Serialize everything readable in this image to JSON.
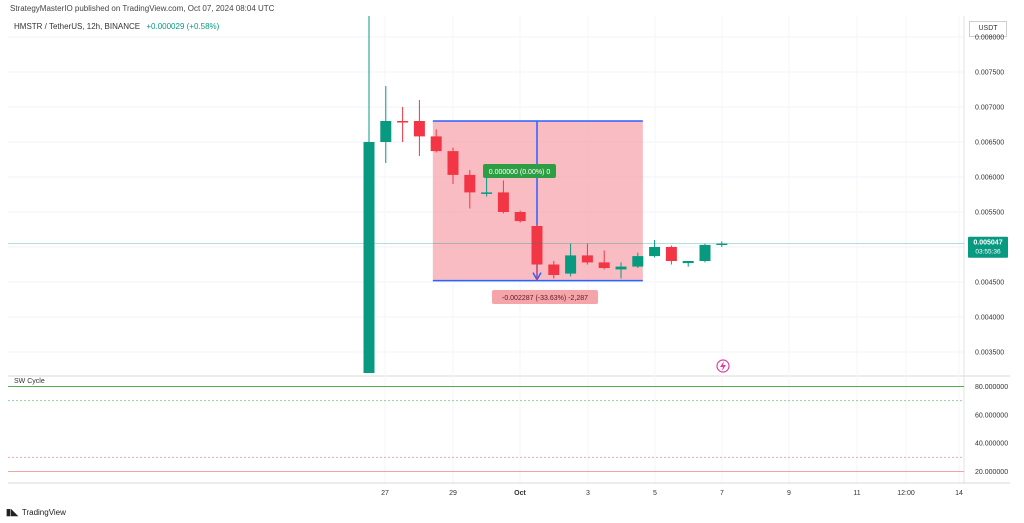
{
  "header": {
    "published": "StrategyMasterIO published on TradingView.com, Oct 07, 2024 08:04 UTC",
    "symbol": "HMSTR / TetherUS, 12h, BINANCE",
    "change": "+0.000029 (+0.58%)"
  },
  "currency_label": "USDT",
  "price_tag": {
    "price": "0.005047",
    "countdown": "03:55:36",
    "color": "#089981"
  },
  "indicator_label": "SW Cycle",
  "footer": {
    "brand": "TradingView",
    "logo_icon": "tradingview-logo-icon"
  },
  "measure": {
    "top_label": "0.000000 (0.00%) 0",
    "bottom_label": "-0.002287 (-33.63%) -2,287",
    "top_price": 0.0068,
    "bottom_price": 0.00452,
    "start_bar": 3.8,
    "end_bar": 16.3,
    "arrow_bar": 10.0
  },
  "chart_data": {
    "type": "candlestick",
    "interval": "12h",
    "colors": {
      "up": "#089981",
      "down": "#f23645",
      "measure_fill": "#f6a5ad",
      "measure_border": "#2962ff"
    },
    "ylim": [
      0.0032,
      0.0083
    ],
    "y_ticks": [
      "0.008000",
      "0.007500",
      "0.007000",
      "0.006500",
      "0.006000",
      "0.005500",
      "0.005000",
      "0.004500",
      "0.004000",
      "0.003500"
    ],
    "x_ticks": [
      "27",
      "29",
      "Oct",
      "3",
      "5",
      "7",
      "9",
      "11",
      "12:00",
      "14"
    ],
    "candles": [
      {
        "o": 0.0032,
        "h": 0.0083,
        "l": 0.0032,
        "c": 0.0065
      },
      {
        "o": 0.0065,
        "h": 0.0073,
        "l": 0.0062,
        "c": 0.0068
      },
      {
        "o": 0.0068,
        "h": 0.007,
        "l": 0.0065,
        "c": 0.00678
      },
      {
        "o": 0.0068,
        "h": 0.0071,
        "l": 0.0063,
        "c": 0.00658
      },
      {
        "o": 0.00658,
        "h": 0.00668,
        "l": 0.00635,
        "c": 0.00637
      },
      {
        "o": 0.00637,
        "h": 0.00642,
        "l": 0.0059,
        "c": 0.00603
      },
      {
        "o": 0.00603,
        "h": 0.0061,
        "l": 0.00555,
        "c": 0.00578
      },
      {
        "o": 0.00578,
        "h": 0.006,
        "l": 0.00572,
        "c": 0.00578
      },
      {
        "o": 0.00578,
        "h": 0.00595,
        "l": 0.00548,
        "c": 0.0055
      },
      {
        "o": 0.0055,
        "h": 0.00552,
        "l": 0.00535,
        "c": 0.00537
      },
      {
        "o": 0.0053,
        "h": 0.00532,
        "l": 0.00452,
        "c": 0.00475
      },
      {
        "o": 0.00475,
        "h": 0.0048,
        "l": 0.00455,
        "c": 0.0046
      },
      {
        "o": 0.00462,
        "h": 0.00505,
        "l": 0.00458,
        "c": 0.00488
      },
      {
        "o": 0.00488,
        "h": 0.00505,
        "l": 0.00475,
        "c": 0.00478
      },
      {
        "o": 0.00478,
        "h": 0.00495,
        "l": 0.00468,
        "c": 0.0047
      },
      {
        "o": 0.00468,
        "h": 0.00478,
        "l": 0.00455,
        "c": 0.00472
      },
      {
        "o": 0.00472,
        "h": 0.00492,
        "l": 0.0047,
        "c": 0.00487
      },
      {
        "o": 0.00487,
        "h": 0.0051,
        "l": 0.00485,
        "c": 0.005
      },
      {
        "o": 0.005,
        "h": 0.00502,
        "l": 0.00475,
        "c": 0.0048
      },
      {
        "o": 0.00477,
        "h": 0.0048,
        "l": 0.00472,
        "c": 0.0048
      },
      {
        "o": 0.0048,
        "h": 0.00505,
        "l": 0.00478,
        "c": 0.00503
      },
      {
        "o": 0.00503,
        "h": 0.00508,
        "l": 0.005,
        "c": 0.00505
      }
    ],
    "indicator": {
      "name": "SW Cycle",
      "ylim": [
        14,
        86
      ],
      "y_ticks": [
        "80.000000",
        "60.000000",
        "40.000000",
        "20.000000"
      ],
      "levels": [
        {
          "value": 80,
          "color": "#4caf50",
          "style": "solid"
        },
        {
          "value": 70,
          "color": "#8fd19e",
          "style": "dotted"
        },
        {
          "value": 30,
          "color": "#f0a5a5",
          "style": "dotted"
        },
        {
          "value": 20,
          "color": "#f0a5a5",
          "style": "solid"
        }
      ]
    }
  }
}
